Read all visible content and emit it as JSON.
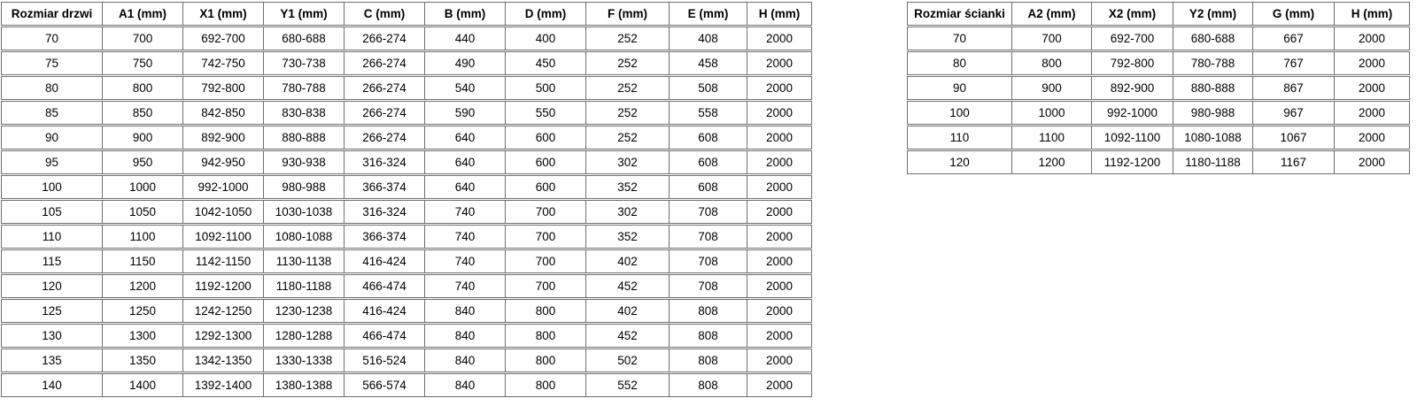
{
  "page": {
    "background_color": "#ffffff",
    "border_color": "#6f6f6f",
    "text_color": "#000000"
  },
  "tables": [
    {
      "name": "door-size-table",
      "headers": [
        "Rozmiar drzwi",
        "A1 (mm)",
        "X1 (mm)",
        "Y1 (mm)",
        "C (mm)",
        "B (mm)",
        "D (mm)",
        "F (mm)",
        "E (mm)",
        "H (mm)"
      ],
      "rows": [
        [
          "70",
          "700",
          "692-700",
          "680-688",
          "266-274",
          "440",
          "400",
          "252",
          "408",
          "2000"
        ],
        [
          "75",
          "750",
          "742-750",
          "730-738",
          "266-274",
          "490",
          "450",
          "252",
          "458",
          "2000"
        ],
        [
          "80",
          "800",
          "792-800",
          "780-788",
          "266-274",
          "540",
          "500",
          "252",
          "508",
          "2000"
        ],
        [
          "85",
          "850",
          "842-850",
          "830-838",
          "266-274",
          "590",
          "550",
          "252",
          "558",
          "2000"
        ],
        [
          "90",
          "900",
          "892-900",
          "880-888",
          "266-274",
          "640",
          "600",
          "252",
          "608",
          "2000"
        ],
        [
          "95",
          "950",
          "942-950",
          "930-938",
          "316-324",
          "640",
          "600",
          "302",
          "608",
          "2000"
        ],
        [
          "100",
          "1000",
          "992-1000",
          "980-988",
          "366-374",
          "640",
          "600",
          "352",
          "608",
          "2000"
        ],
        [
          "105",
          "1050",
          "1042-1050",
          "1030-1038",
          "316-324",
          "740",
          "700",
          "302",
          "708",
          "2000"
        ],
        [
          "110",
          "1100",
          "1092-1100",
          "1080-1088",
          "366-374",
          "740",
          "700",
          "352",
          "708",
          "2000"
        ],
        [
          "115",
          "1150",
          "1142-1150",
          "1130-1138",
          "416-424",
          "740",
          "700",
          "402",
          "708",
          "2000"
        ],
        [
          "120",
          "1200",
          "1192-1200",
          "1180-1188",
          "466-474",
          "740",
          "700",
          "452",
          "708",
          "2000"
        ],
        [
          "125",
          "1250",
          "1242-1250",
          "1230-1238",
          "416-424",
          "840",
          "800",
          "402",
          "808",
          "2000"
        ],
        [
          "130",
          "1300",
          "1292-1300",
          "1280-1288",
          "466-474",
          "840",
          "800",
          "452",
          "808",
          "2000"
        ],
        [
          "135",
          "1350",
          "1342-1350",
          "1330-1338",
          "516-524",
          "840",
          "800",
          "502",
          "808",
          "2000"
        ],
        [
          "140",
          "1400",
          "1392-1400",
          "1380-1388",
          "566-574",
          "840",
          "800",
          "552",
          "808",
          "2000"
        ]
      ]
    },
    {
      "name": "wall-size-table",
      "headers": [
        "Rozmiar ścianki",
        "A2 (mm)",
        "X2 (mm)",
        "Y2 (mm)",
        "G (mm)",
        "H (mm)"
      ],
      "rows": [
        [
          "70",
          "700",
          "692-700",
          "680-688",
          "667",
          "2000"
        ],
        [
          "80",
          "800",
          "792-800",
          "780-788",
          "767",
          "2000"
        ],
        [
          "90",
          "900",
          "892-900",
          "880-888",
          "867",
          "2000"
        ],
        [
          "100",
          "1000",
          "992-1000",
          "980-988",
          "967",
          "2000"
        ],
        [
          "110",
          "1100",
          "1092-1100",
          "1080-1088",
          "1067",
          "2000"
        ],
        [
          "120",
          "1200",
          "1192-1200",
          "1180-1188",
          "1167",
          "2000"
        ]
      ]
    }
  ]
}
